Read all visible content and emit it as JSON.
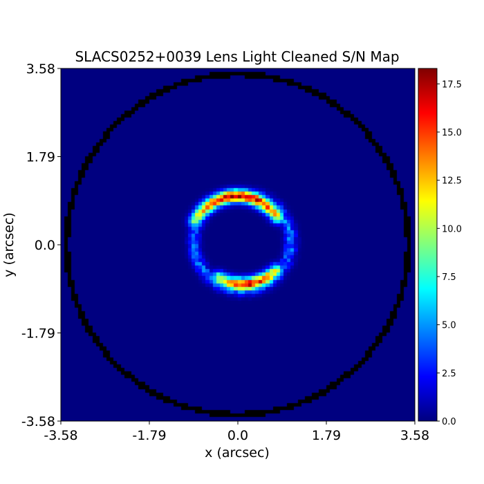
{
  "chart_data": {
    "type": "heatmap",
    "title": "SLACS0252+0039 Lens Light Cleaned S/N Map",
    "xlabel": "x (arcsec)",
    "ylabel": "y (arcsec)",
    "xlim": [
      -3.58,
      3.58
    ],
    "ylim": [
      -3.58,
      3.58
    ],
    "x_ticks": [
      {
        "value": -3.58,
        "label": "-3.58"
      },
      {
        "value": -1.79,
        "label": "-1.79"
      },
      {
        "value": 0.0,
        "label": "0.0"
      },
      {
        "value": 1.79,
        "label": "1.79"
      },
      {
        "value": 3.58,
        "label": "3.58"
      }
    ],
    "y_ticks": [
      {
        "value": -3.58,
        "label": "-3.58"
      },
      {
        "value": -1.79,
        "label": "-1.79"
      },
      {
        "value": 0.0,
        "label": "0.0"
      },
      {
        "value": 1.79,
        "label": "1.79"
      },
      {
        "value": 3.58,
        "label": "3.58"
      }
    ],
    "colormap": "jet",
    "colorbar": {
      "vmin": 0.0,
      "vmax": 18.3,
      "ticks": [
        {
          "value": 0.0,
          "label": "0.0"
        },
        {
          "value": 2.5,
          "label": "2.5"
        },
        {
          "value": 5.0,
          "label": "5.0"
        },
        {
          "value": 7.5,
          "label": "7.5"
        },
        {
          "value": 10.0,
          "label": "10.0"
        },
        {
          "value": 12.5,
          "label": "12.5"
        },
        {
          "value": 15.0,
          "label": "15.0"
        },
        {
          "value": 17.5,
          "label": "17.5"
        }
      ]
    },
    "mask_circle": {
      "center": [
        0.0,
        0.0
      ],
      "radius_arcsec": 3.46,
      "color": "#000000"
    },
    "emission_features": [
      {
        "name": "upper-arc",
        "center": [
          0.0,
          0.0
        ],
        "radius_arcsec": 0.98,
        "angle_start_deg": 35,
        "angle_end_deg": 150,
        "peak_snr": 17.5,
        "peak_angle_deg": 88
      },
      {
        "name": "lower-arc",
        "center": [
          0.1,
          0.15
        ],
        "radius_arcsec": 0.96,
        "angle_start_deg": -120,
        "angle_end_deg": -45,
        "peak_snr": 16.0,
        "peak_angle_deg": -82
      },
      {
        "name": "faint-ring",
        "center": [
          0.1,
          0.05
        ],
        "radius_arcsec": 0.98,
        "angle_start_deg": 0,
        "angle_end_deg": 360,
        "peak_snr": 4.0
      }
    ]
  }
}
